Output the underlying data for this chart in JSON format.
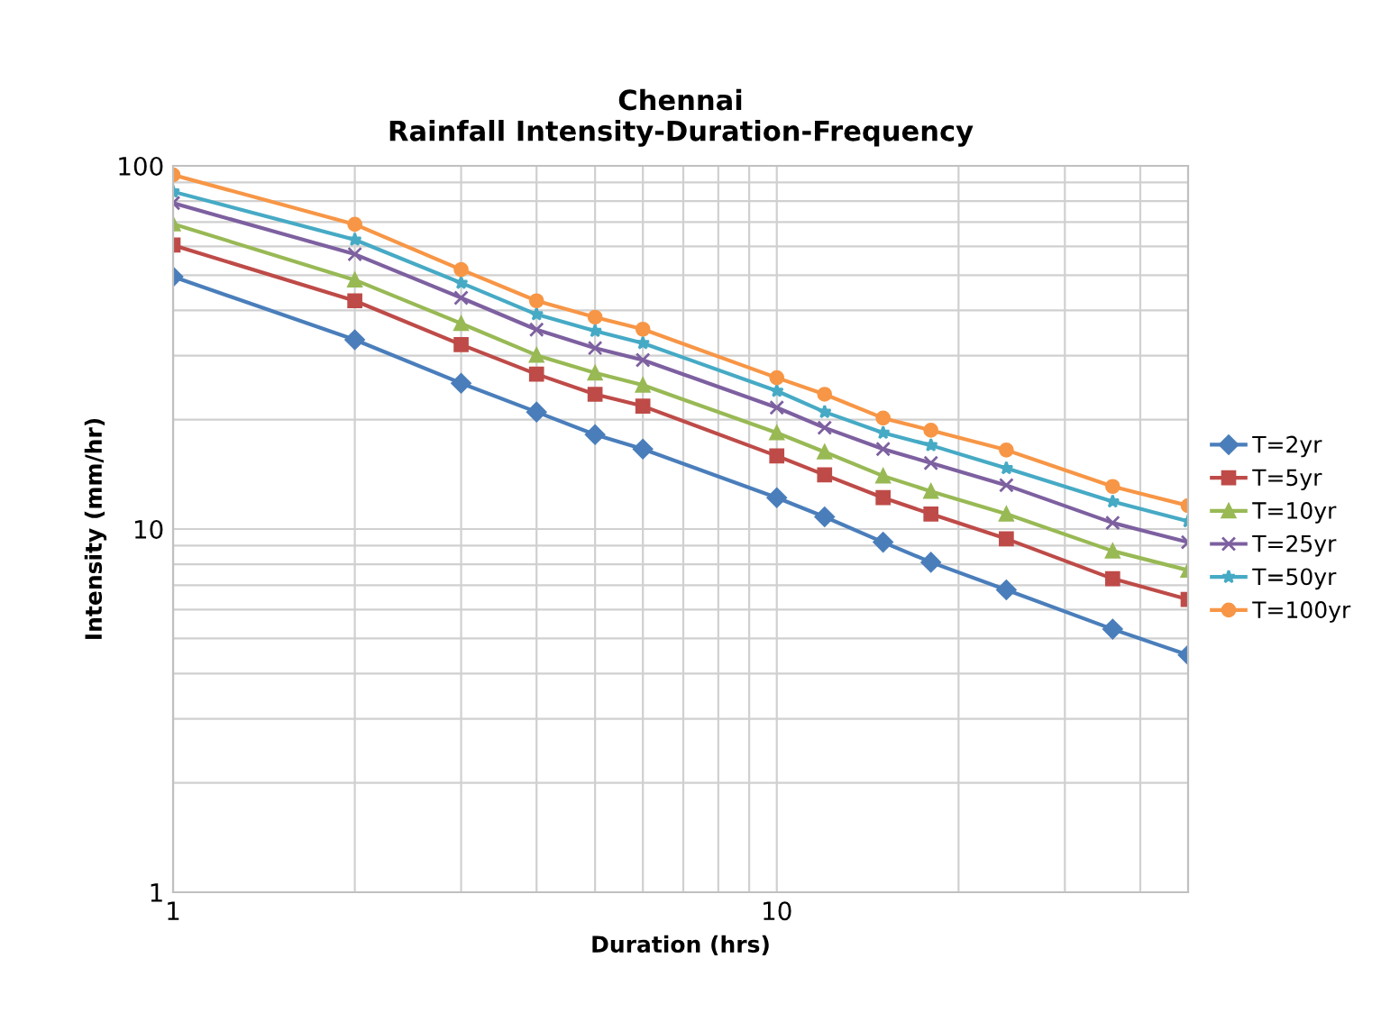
{
  "chart_data": {
    "type": "line",
    "title": "Chennai\nRainfall Intensity-Duration-Frequency",
    "xlabel": "Duration (hrs)",
    "ylabel": "Intensity (mm/hr)",
    "x": [
      1,
      2,
      3,
      4,
      5,
      6,
      10,
      12,
      15,
      18,
      24,
      36,
      48
    ],
    "series": [
      {
        "name": "T=2yr",
        "color": "#4a7ebb",
        "marker": "diamond",
        "values": [
          49.5,
          33.2,
          25.2,
          21.0,
          18.2,
          16.6,
          12.2,
          10.8,
          9.2,
          8.1,
          6.8,
          5.3,
          4.5
        ]
      },
      {
        "name": "T=5yr",
        "color": "#be4b48",
        "marker": "square",
        "values": [
          60.5,
          42.5,
          32.2,
          26.7,
          23.5,
          21.8,
          15.9,
          14.1,
          12.2,
          11.0,
          9.4,
          7.3,
          6.4
        ]
      },
      {
        "name": "T=10yr",
        "color": "#98b954",
        "marker": "triangle",
        "values": [
          69.2,
          48.5,
          36.8,
          30.1,
          26.9,
          24.9,
          18.4,
          16.3,
          14.0,
          12.7,
          11.0,
          8.7,
          7.7
        ]
      },
      {
        "name": "T=25yr",
        "color": "#7d60a0",
        "marker": "cross",
        "values": [
          79.0,
          57.1,
          43.3,
          35.4,
          31.5,
          29.2,
          21.6,
          19.0,
          16.6,
          15.2,
          13.2,
          10.4,
          9.2
        ]
      },
      {
        "name": "T=50yr",
        "color": "#46aac5",
        "marker": "star",
        "values": [
          84.9,
          62.6,
          47.6,
          39.0,
          35.1,
          32.5,
          24.0,
          21.0,
          18.4,
          17.0,
          14.7,
          11.9,
          10.5
        ]
      },
      {
        "name": "T=100yr",
        "color": "#f79646",
        "marker": "circle",
        "values": [
          94.4,
          69.0,
          51.8,
          42.5,
          38.3,
          35.5,
          26.1,
          23.5,
          20.2,
          18.7,
          16.5,
          13.1,
          11.6
        ]
      }
    ],
    "log": "xy",
    "xlim": [
      1,
      48
    ],
    "ylim": [
      1,
      100
    ],
    "xticks": [
      1,
      10
    ],
    "yticks": [
      1,
      10,
      100
    ],
    "grid": true,
    "legend": "right",
    "line_style": "solid"
  }
}
